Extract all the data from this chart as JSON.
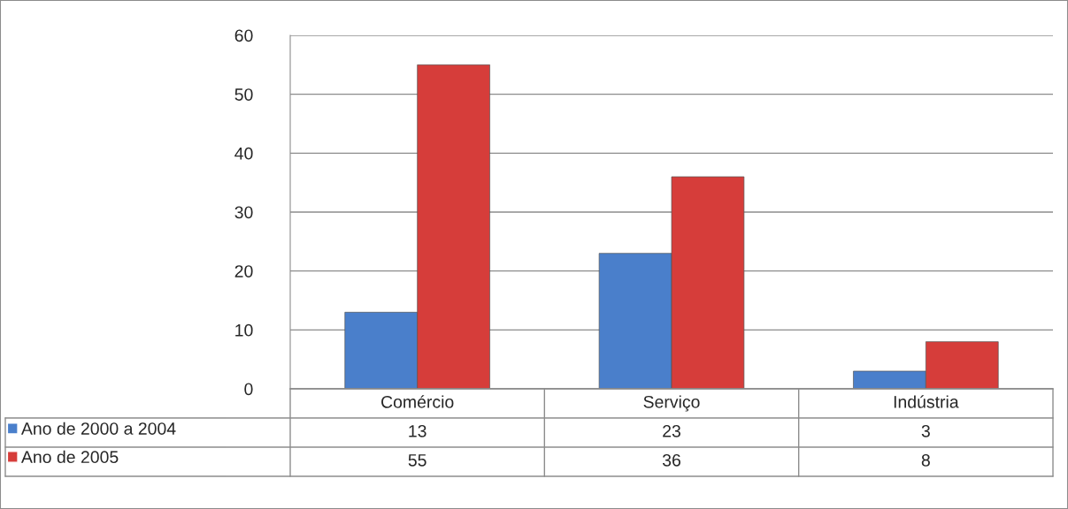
{
  "chart_data": {
    "type": "bar",
    "categories": [
      "Comércio",
      "Serviço",
      "Indústria"
    ],
    "series": [
      {
        "name": "Ano de 2000 a 2004",
        "color": "#4a7fcb",
        "values": [
          13,
          23,
          3
        ]
      },
      {
        "name": "Ano de 2005",
        "color": "#d63d3a",
        "values": [
          55,
          36,
          8
        ]
      }
    ],
    "ylim": [
      0,
      60
    ],
    "yticks": [
      0,
      10,
      20,
      30,
      40,
      50,
      60
    ],
    "grid": "y",
    "legend": "bottom left",
    "data_labels": true
  }
}
